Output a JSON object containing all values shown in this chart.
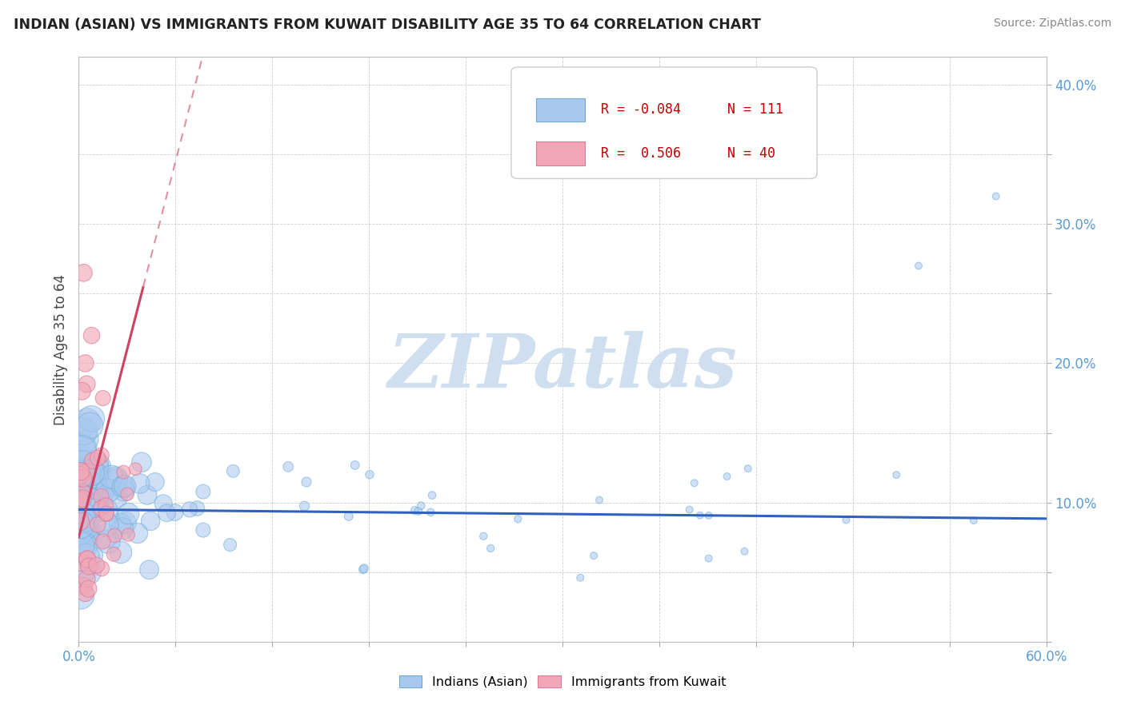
{
  "title": "INDIAN (ASIAN) VS IMMIGRANTS FROM KUWAIT DISABILITY AGE 35 TO 64 CORRELATION CHART",
  "source": "Source: ZipAtlas.com",
  "ylabel": "Disability Age 35 to 64",
  "xlim": [
    0.0,
    0.6
  ],
  "ylim": [
    0.0,
    0.42
  ],
  "xticks": [
    0.0,
    0.06,
    0.12,
    0.18,
    0.24,
    0.3,
    0.36,
    0.42,
    0.48,
    0.54,
    0.6
  ],
  "yticks": [
    0.0,
    0.05,
    0.1,
    0.15,
    0.2,
    0.25,
    0.3,
    0.35,
    0.4
  ],
  "color_indian": "#a8c8f0",
  "color_kuwait": "#f0a8b8",
  "color_indian_edge": "#6aaad4",
  "color_kuwait_edge": "#e07898",
  "trend_indian_color": "#3060c0",
  "trend_kuwait_solid": "#d04060",
  "trend_kuwait_dashed": "#e090a0",
  "watermark_color": "#d0dff0",
  "r_indian": "-0.084",
  "n_indian": "111",
  "r_kuwait": "0.506",
  "n_kuwait": "40"
}
